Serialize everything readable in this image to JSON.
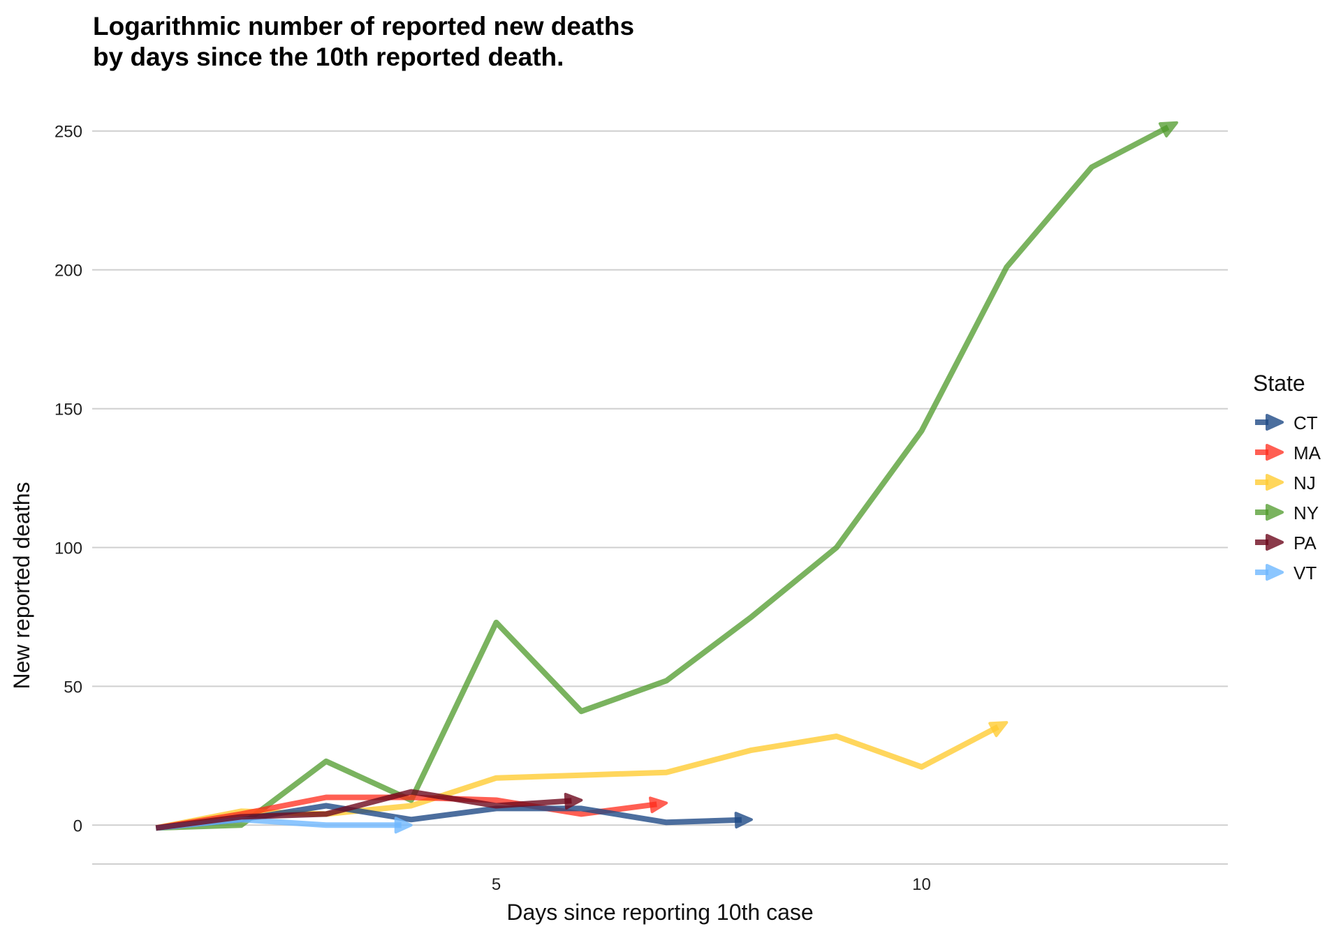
{
  "chart_data": {
    "type": "line",
    "title": "Logarithmic number of reported new deaths\nby days since the 10th reported death.",
    "xlabel": "Days since reporting 10th case",
    "ylabel": "New reported deaths",
    "xlim": [
      0.25,
      13.6
    ],
    "ylim": [
      -14,
      262
    ],
    "x_ticks": [
      5,
      10
    ],
    "y_ticks": [
      0,
      50,
      100,
      150,
      200,
      250
    ],
    "grid": true,
    "legend": {
      "title": "State",
      "position": "right"
    },
    "series": [
      {
        "name": "CT",
        "color": "#1F4A86",
        "opacity": 0.8,
        "x": [
          1,
          2,
          3,
          4,
          5,
          6,
          7,
          8
        ],
        "y": [
          -1,
          2,
          7,
          2,
          6,
          6,
          1,
          2
        ]
      },
      {
        "name": "MA",
        "color": "#FF2A1A",
        "opacity": 0.75,
        "x": [
          1,
          2,
          3,
          4,
          5,
          6,
          7
        ],
        "y": [
          -1,
          4,
          10,
          10,
          9,
          4,
          8
        ]
      },
      {
        "name": "NJ",
        "color": "#FFCC33",
        "opacity": 0.8,
        "x": [
          1,
          2,
          3,
          4,
          5,
          6,
          7,
          8,
          9,
          10,
          11
        ],
        "y": [
          -1,
          5,
          4,
          7,
          17,
          18,
          19,
          27,
          32,
          21,
          37
        ]
      },
      {
        "name": "NY",
        "color": "#4E9A2A",
        "opacity": 0.75,
        "x": [
          1,
          2,
          3,
          4,
          5,
          6,
          7,
          8,
          9,
          10,
          11,
          12,
          13
        ],
        "y": [
          -1,
          0,
          23,
          9,
          73,
          41,
          52,
          75,
          100,
          142,
          201,
          237,
          253
        ]
      },
      {
        "name": "PA",
        "color": "#6E0A1E",
        "opacity": 0.8,
        "x": [
          1,
          2,
          3,
          4,
          5,
          6
        ],
        "y": [
          -1,
          3,
          4,
          12,
          7,
          9
        ]
      },
      {
        "name": "VT",
        "color": "#6FB8FF",
        "opacity": 0.8,
        "x": [
          1,
          2,
          3,
          4
        ],
        "y": [
          -1,
          2,
          0,
          0
        ]
      }
    ]
  }
}
